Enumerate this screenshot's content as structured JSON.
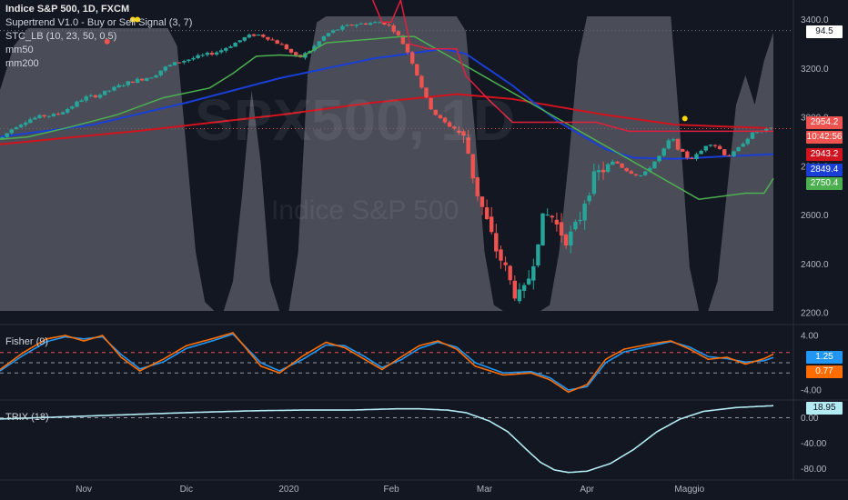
{
  "header": {
    "symbol_line": "Indice S&P 500, 1D, FXCM",
    "indicators": [
      "Supertrend V1.0 - Buy or Sell Signal (3, 7)",
      "STC_LB (10, 23, 50, 0.5)",
      "mm50",
      "mm200"
    ]
  },
  "watermark": {
    "main": "SPX500, 1D",
    "sub": "Indice S&P 500"
  },
  "price_tags": {
    "stc_value": "94.5",
    "last_price": "2954.2",
    "countdown": "10:42:56",
    "supertrend_level": "2943.2",
    "mm50_value": "2849.4",
    "supertrend_stop": "2750.4"
  },
  "fisher": {
    "label": "Fisher (9)",
    "tag_a": "1.25",
    "tag_b": "0.77"
  },
  "trix": {
    "label": "TRIX (18)",
    "tag": "18.95"
  },
  "colors": {
    "background": "#131722",
    "up_candle": "#26a69a",
    "down_candle": "#ef5350",
    "supertrend_up": "#4caf50",
    "supertrend_down": "#e01f3d",
    "mm50": "#1a3fd6",
    "mm200": "#d0131e",
    "stc_fill": "#5d606b",
    "fisher_blue": "#2196f3",
    "fisher_orange": "#ff6d00",
    "trix_line": "#b2ebf2"
  },
  "chart_data": [
    {
      "type": "candlestick",
      "title": "Indice S&P 500, 1D, FXCM",
      "x_ticks": [
        "Nov",
        "Dic",
        "2020",
        "Feb",
        "Mar",
        "Apr",
        "Maggio"
      ],
      "y_ticks": [
        2200.0,
        2400.0,
        2600.0,
        2800.0,
        3000.0,
        3200.0,
        3400.0
      ],
      "ylim": [
        2160,
        3480
      ],
      "dotted_levels": [
        3355,
        2954
      ],
      "close_path": [
        [
          0,
          2910
        ],
        [
          6,
          2960
        ],
        [
          12,
          2990
        ],
        [
          18,
          3005
        ],
        [
          24,
          3010
        ],
        [
          30,
          3040
        ],
        [
          36,
          3080
        ],
        [
          42,
          3090
        ],
        [
          48,
          3115
        ],
        [
          54,
          3140
        ],
        [
          60,
          3155
        ],
        [
          66,
          3170
        ],
        [
          70,
          3200
        ],
        [
          76,
          3225
        ],
        [
          82,
          3240
        ],
        [
          88,
          3255
        ],
        [
          94,
          3270
        ],
        [
          100,
          3300
        ],
        [
          106,
          3330
        ],
        [
          110,
          3340
        ],
        [
          114,
          3330
        ],
        [
          118,
          3310
        ],
        [
          122,
          3290
        ],
        [
          128,
          3240
        ],
        [
          134,
          3280
        ],
        [
          140,
          3340
        ],
        [
          146,
          3365
        ],
        [
          152,
          3380
        ],
        [
          158,
          3385
        ],
        [
          164,
          3390
        ],
        [
          168,
          3370
        ],
        [
          172,
          3320
        ],
        [
          176,
          3250
        ],
        [
          180,
          3150
        ],
        [
          184,
          3050
        ],
        [
          188,
          3000
        ],
        [
          192,
          2970
        ],
        [
          196,
          2950
        ],
        [
          200,
          2900
        ],
        [
          204,
          2720
        ],
        [
          208,
          2600
        ],
        [
          212,
          2480
        ],
        [
          216,
          2400
        ],
        [
          220,
          2300
        ],
        [
          224,
          2250
        ],
        [
          228,
          2380
        ],
        [
          232,
          2560
        ],
        [
          236,
          2610
        ],
        [
          240,
          2540
        ],
        [
          244,
          2500
        ],
        [
          248,
          2560
        ],
        [
          252,
          2700
        ],
        [
          256,
          2760
        ],
        [
          260,
          2800
        ],
        [
          264,
          2820
        ],
        [
          268,
          2790
        ],
        [
          272,
          2770
        ],
        [
          276,
          2760
        ],
        [
          280,
          2810
        ],
        [
          284,
          2850
        ],
        [
          288,
          2920
        ],
        [
          292,
          2860
        ],
        [
          296,
          2830
        ],
        [
          300,
          2850
        ],
        [
          304,
          2900
        ],
        [
          308,
          2880
        ],
        [
          312,
          2840
        ],
        [
          316,
          2860
        ],
        [
          320,
          2910
        ],
        [
          324,
          2940
        ],
        [
          328,
          2945
        ],
        [
          332,
          2954
        ]
      ],
      "stc_path": [
        [
          0,
          75
        ],
        [
          6,
          90
        ],
        [
          12,
          96
        ],
        [
          18,
          96
        ],
        [
          24,
          96
        ],
        [
          30,
          96
        ],
        [
          36,
          96
        ],
        [
          42,
          96
        ],
        [
          48,
          96
        ],
        [
          54,
          96
        ],
        [
          60,
          96
        ],
        [
          66,
          96
        ],
        [
          72,
          96
        ],
        [
          76,
          90
        ],
        [
          80,
          55
        ],
        [
          84,
          20
        ],
        [
          88,
          3
        ],
        [
          92,
          0
        ],
        [
          96,
          0
        ],
        [
          100,
          10
        ],
        [
          104,
          40
        ],
        [
          108,
          75
        ],
        [
          112,
          50
        ],
        [
          116,
          10
        ],
        [
          120,
          0
        ],
        [
          124,
          0
        ],
        [
          128,
          20
        ],
        [
          132,
          80
        ],
        [
          136,
          98
        ],
        [
          140,
          100
        ],
        [
          144,
          100
        ],
        [
          148,
          100
        ],
        [
          152,
          100
        ],
        [
          156,
          100
        ],
        [
          160,
          100
        ],
        [
          164,
          100
        ],
        [
          168,
          100
        ],
        [
          172,
          100
        ],
        [
          176,
          100
        ],
        [
          180,
          100
        ],
        [
          184,
          100
        ],
        [
          188,
          100
        ],
        [
          192,
          100
        ],
        [
          196,
          100
        ],
        [
          200,
          95
        ],
        [
          204,
          60
        ],
        [
          208,
          20
        ],
        [
          212,
          2
        ],
        [
          216,
          0
        ],
        [
          220,
          0
        ],
        [
          224,
          0
        ],
        [
          228,
          0
        ],
        [
          232,
          0
        ],
        [
          236,
          2
        ],
        [
          240,
          20
        ],
        [
          244,
          50
        ],
        [
          248,
          85
        ],
        [
          252,
          100
        ],
        [
          256,
          100
        ],
        [
          260,
          100
        ],
        [
          264,
          100
        ],
        [
          268,
          100
        ],
        [
          272,
          100
        ],
        [
          276,
          100
        ],
        [
          280,
          100
        ],
        [
          284,
          100
        ],
        [
          288,
          100
        ],
        [
          292,
          60
        ],
        [
          296,
          15
        ],
        [
          300,
          0
        ],
        [
          304,
          0
        ],
        [
          308,
          10
        ],
        [
          312,
          40
        ],
        [
          316,
          70
        ],
        [
          320,
          80
        ],
        [
          324,
          70
        ],
        [
          328,
          85
        ],
        [
          332,
          94.5
        ]
      ],
      "mm50_path": [
        [
          0,
          2920
        ],
        [
          40,
          2970
        ],
        [
          80,
          3060
        ],
        [
          120,
          3160
        ],
        [
          160,
          3240
        ],
        [
          190,
          3280
        ],
        [
          200,
          3260
        ],
        [
          220,
          3130
        ],
        [
          240,
          2980
        ],
        [
          260,
          2870
        ],
        [
          272,
          2835
        ],
        [
          290,
          2830
        ],
        [
          310,
          2840
        ],
        [
          332,
          2849.4
        ]
      ],
      "mm200_path": [
        [
          0,
          2890
        ],
        [
          60,
          2945
        ],
        [
          120,
          3010
        ],
        [
          160,
          3060
        ],
        [
          196,
          3095
        ],
        [
          220,
          3075
        ],
        [
          260,
          3010
        ],
        [
          290,
          2970
        ],
        [
          332,
          2955
        ]
      ],
      "supertrend_up_path": [
        [
          0,
          2910
        ],
        [
          12,
          2920
        ],
        [
          30,
          2960
        ],
        [
          50,
          3010
        ],
        [
          70,
          3080
        ],
        [
          90,
          3120
        ],
        [
          100,
          3180
        ],
        [
          110,
          3250
        ],
        [
          120,
          3255
        ],
        [
          130,
          3250
        ],
        [
          140,
          3305
        ],
        [
          160,
          3320
        ],
        [
          172,
          3330
        ],
        [
          178,
          3330
        ],
        [
          300,
          2665
        ],
        [
          320,
          2690
        ],
        [
          328,
          2690
        ],
        [
          332,
          2750
        ]
      ],
      "supertrend_down_path": [
        [
          160,
          3480
        ],
        [
          164,
          3390
        ],
        [
          168,
          3390
        ],
        [
          172,
          3480
        ],
        [
          176,
          3300
        ],
        [
          184,
          3280
        ],
        [
          196,
          3280
        ],
        [
          200,
          3170
        ],
        [
          210,
          3070
        ],
        [
          220,
          2980
        ],
        [
          230,
          2980
        ],
        [
          256,
          2980
        ],
        [
          270,
          2943
        ],
        [
          332,
          2943
        ]
      ],
      "supertrend_markers": [
        [
          46,
          3310
        ],
        [
          57,
          3400
        ],
        [
          59,
          3400
        ],
        [
          294,
          2995
        ]
      ]
    },
    {
      "type": "line",
      "title": "Fisher (9)",
      "y_ticks": [
        4.0,
        -4.0
      ],
      "ylim": [
        -5.2,
        5.2
      ],
      "dashed_levels": [
        1.5,
        0,
        -1.5
      ],
      "series": [
        {
          "values_path": [
            [
              0,
              -1.0
            ],
            [
              10,
              1.5
            ],
            [
              20,
              3.5
            ],
            [
              28,
              4.0
            ],
            [
              36,
              3.2
            ],
            [
              44,
              4.0
            ],
            [
              52,
              0.8
            ],
            [
              60,
              -1.2
            ],
            [
              70,
              0.5
            ],
            [
              80,
              2.5
            ],
            [
              92,
              3.6
            ],
            [
              100,
              4.4
            ],
            [
              112,
              -0.5
            ],
            [
              120,
              -1.5
            ],
            [
              130,
              1.0
            ],
            [
              140,
              3.0
            ],
            [
              148,
              2.2
            ],
            [
              156,
              0.6
            ],
            [
              164,
              -1.0
            ],
            [
              172,
              0.8
            ],
            [
              180,
              2.5
            ],
            [
              188,
              3.2
            ],
            [
              196,
              2.0
            ],
            [
              204,
              -0.5
            ],
            [
              216,
              -1.8
            ],
            [
              228,
              -1.5
            ],
            [
              236,
              -2.5
            ],
            [
              244,
              -4.3
            ],
            [
              252,
              -3.2
            ],
            [
              260,
              0.5
            ],
            [
              268,
              2.0
            ],
            [
              280,
              2.8
            ],
            [
              288,
              3.2
            ],
            [
              296,
              2.0
            ],
            [
              304,
              0.5
            ],
            [
              312,
              0.8
            ],
            [
              320,
              -0.2
            ],
            [
              328,
              0.6
            ],
            [
              332,
              1.25
            ]
          ]
        },
        {
          "values_path": [
            [
              0,
              -1.2
            ],
            [
              10,
              1.1
            ],
            [
              20,
              3.1
            ],
            [
              28,
              3.8
            ],
            [
              36,
              3.5
            ],
            [
              44,
              3.8
            ],
            [
              52,
              1.2
            ],
            [
              60,
              -0.9
            ],
            [
              70,
              0.1
            ],
            [
              80,
              2.1
            ],
            [
              92,
              3.3
            ],
            [
              100,
              4.2
            ],
            [
              112,
              0.0
            ],
            [
              120,
              -1.2
            ],
            [
              130,
              0.5
            ],
            [
              140,
              2.6
            ],
            [
              148,
              2.5
            ],
            [
              156,
              1.0
            ],
            [
              164,
              -0.7
            ],
            [
              172,
              0.4
            ],
            [
              180,
              2.1
            ],
            [
              188,
              3.0
            ],
            [
              196,
              2.3
            ],
            [
              204,
              0.0
            ],
            [
              216,
              -1.5
            ],
            [
              228,
              -1.3
            ],
            [
              236,
              -2.2
            ],
            [
              244,
              -4.0
            ],
            [
              252,
              -3.5
            ],
            [
              260,
              0.0
            ],
            [
              268,
              1.6
            ],
            [
              280,
              2.5
            ],
            [
              288,
              3.1
            ],
            [
              296,
              2.3
            ],
            [
              304,
              0.9
            ],
            [
              312,
              0.6
            ],
            [
              320,
              0.1
            ],
            [
              328,
              0.3
            ],
            [
              332,
              0.77
            ]
          ]
        }
      ]
    },
    {
      "type": "line",
      "title": "TRIX (18)",
      "y_ticks": [
        0.0,
        -40.0,
        -80.0
      ],
      "ylim": [
        -95,
        25
      ],
      "dashed_levels": [
        0
      ],
      "values_path": [
        [
          0,
          -2
        ],
        [
          40,
          3
        ],
        [
          80,
          8
        ],
        [
          110,
          11
        ],
        [
          130,
          12
        ],
        [
          150,
          12
        ],
        [
          170,
          14
        ],
        [
          180,
          14
        ],
        [
          192,
          12
        ],
        [
          200,
          8
        ],
        [
          210,
          -5
        ],
        [
          218,
          -22
        ],
        [
          226,
          -50
        ],
        [
          232,
          -70
        ],
        [
          238,
          -82
        ],
        [
          244,
          -86
        ],
        [
          252,
          -84
        ],
        [
          262,
          -72
        ],
        [
          272,
          -50
        ],
        [
          282,
          -22
        ],
        [
          292,
          -2
        ],
        [
          302,
          10
        ],
        [
          316,
          16
        ],
        [
          332,
          18.95
        ]
      ]
    }
  ]
}
